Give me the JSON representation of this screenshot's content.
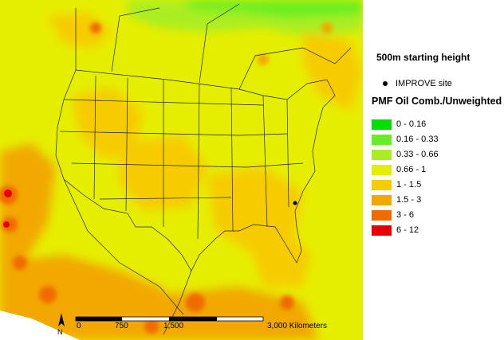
{
  "map": {
    "height_label": "500m starting height",
    "site_legend_label": "IMPROVE site",
    "layer_title": "PMF Oil Comb./Unweighted",
    "classes": [
      {
        "label": "0 - 0.16",
        "color": "#00e000"
      },
      {
        "label": "0.16 - 0.33",
        "color": "#66ee22"
      },
      {
        "label": "0.33 - 0.66",
        "color": "#aaee22"
      },
      {
        "label": "0.66 - 1",
        "color": "#e6ee00"
      },
      {
        "label": "1 - 1.5",
        "color": "#f6cc00"
      },
      {
        "label": "1.5 - 3",
        "color": "#f2a800"
      },
      {
        "label": "3 - 6",
        "color": "#f06a00"
      },
      {
        "label": "6 - 12",
        "color": "#e80000"
      }
    ],
    "scale_bar": {
      "ticks": [
        "0",
        "750",
        "1,500",
        "3,000 Kilometers"
      ]
    },
    "north_arrow": "N"
  }
}
